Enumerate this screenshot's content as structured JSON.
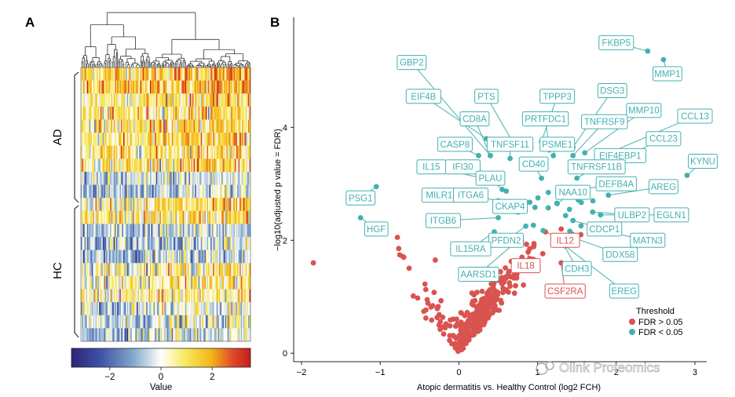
{
  "panels": {
    "a_label": "A",
    "b_label": "B"
  },
  "chart_data": [
    {
      "type": "heatmap",
      "panel": "A",
      "row_groups": [
        "AD",
        "HC"
      ],
      "colorbar": {
        "title": "Value",
        "ticks": [
          -2,
          0,
          2
        ],
        "tick_labels": [
          "−2",
          "0",
          "2"
        ],
        "range": [
          -3.5,
          3.5
        ],
        "colors": [
          "#2b2676",
          "#3f50a8",
          "#7fa6c8",
          "#ffffff",
          "#f7e85a",
          "#f4b41a",
          "#e04a2a",
          "#c41c1c"
        ]
      }
    },
    {
      "type": "scatter",
      "panel": "B",
      "xlabel": "Atopic dermatitis vs. Healthy Control (log2 FCH)",
      "ylabel": "−log10(adjusted p value = FDR)",
      "xlim": [
        -2.1,
        3.15
      ],
      "ylim": [
        -0.15,
        5.95
      ],
      "xticks": [
        -2,
        -1,
        0,
        1,
        2,
        3
      ],
      "xtick_labels": [
        "−2",
        "−1",
        "0",
        "1",
        "2",
        "3"
      ],
      "yticks": [
        0,
        2,
        4
      ],
      "ytick_labels": [
        "0",
        "2",
        "4"
      ],
      "legend": {
        "title": "Threshold",
        "position": "bottom-right",
        "entries": [
          {
            "label": "FDR > 0.05",
            "color": "#d9534f"
          },
          {
            "label": "FDR < 0.05",
            "color": "#45b0b0"
          }
        ]
      },
      "significant": [
        {
          "name": "FKBP5",
          "x": 2.4,
          "y": 5.35,
          "lx": 2.0,
          "ly": 5.5
        },
        {
          "name": "MMP1",
          "x": 2.6,
          "y": 5.2,
          "lx": 2.65,
          "ly": 4.95
        },
        {
          "name": "GBP2",
          "x": 0.4,
          "y": 3.5,
          "lx": -0.6,
          "ly": 5.15
        },
        {
          "name": "EIF4B",
          "x": 0.35,
          "y": 3.8,
          "lx": -0.45,
          "ly": 4.55
        },
        {
          "name": "PTS",
          "x": 0.7,
          "y": 3.7,
          "lx": 0.35,
          "ly": 4.55
        },
        {
          "name": "TPPP3",
          "x": 1.05,
          "y": 3.75,
          "lx": 1.25,
          "ly": 4.55
        },
        {
          "name": "DSG3",
          "x": 1.45,
          "y": 3.65,
          "lx": 1.95,
          "ly": 4.65
        },
        {
          "name": "MMP10",
          "x": 1.6,
          "y": 3.55,
          "lx": 2.35,
          "ly": 4.3
        },
        {
          "name": "CCL13",
          "x": 1.75,
          "y": 3.45,
          "lx": 3.0,
          "ly": 4.2
        },
        {
          "name": "CD8A",
          "x": 0.4,
          "y": 3.5,
          "lx": 0.2,
          "ly": 4.15
        },
        {
          "name": "PRTFDC1",
          "x": 1.15,
          "y": 3.6,
          "lx": 1.1,
          "ly": 4.15
        },
        {
          "name": "TNFRSF9",
          "x": 1.45,
          "y": 3.5,
          "lx": 1.85,
          "ly": 4.1
        },
        {
          "name": "CCL23",
          "x": 1.85,
          "y": 3.3,
          "lx": 2.6,
          "ly": 3.8
        },
        {
          "name": "CASP8",
          "x": 0.25,
          "y": 3.5,
          "lx": -0.05,
          "ly": 3.7
        },
        {
          "name": "TNFSF11",
          "x": 0.65,
          "y": 3.45,
          "lx": 0.65,
          "ly": 3.7
        },
        {
          "name": "PSME1",
          "x": 1.2,
          "y": 3.5,
          "lx": 1.25,
          "ly": 3.7
        },
        {
          "name": "EIF4EBP1",
          "x": 1.65,
          "y": 3.35,
          "lx": 2.05,
          "ly": 3.5
        },
        {
          "name": "IL15",
          "x": 0.3,
          "y": 3.1,
          "lx": -0.35,
          "ly": 3.3
        },
        {
          "name": "IFI30",
          "x": 0.55,
          "y": 3.05,
          "lx": 0.05,
          "ly": 3.3
        },
        {
          "name": "CD40",
          "x": 1.05,
          "y": 3.1,
          "lx": 0.95,
          "ly": 3.35
        },
        {
          "name": "TNFRSF11B",
          "x": 1.5,
          "y": 3.1,
          "lx": 1.75,
          "ly": 3.3
        },
        {
          "name": "KYNU",
          "x": 2.9,
          "y": 3.15,
          "lx": 3.1,
          "ly": 3.4
        },
        {
          "name": "PLAU",
          "x": 0.55,
          "y": 2.9,
          "lx": 0.4,
          "ly": 3.1
        },
        {
          "name": "DEFB4A",
          "x": 1.55,
          "y": 2.9,
          "lx": 2.0,
          "ly": 3.0
        },
        {
          "name": "AREG",
          "x": 1.9,
          "y": 2.8,
          "lx": 2.6,
          "ly": 2.95
        },
        {
          "name": "PSG1",
          "x": -1.05,
          "y": 2.95,
          "lx": -1.25,
          "ly": 2.75
        },
        {
          "name": "MILR1",
          "x": 0.2,
          "y": 2.75,
          "lx": -0.25,
          "ly": 2.8
        },
        {
          "name": "ITGA6",
          "x": 0.5,
          "y": 2.7,
          "lx": 0.15,
          "ly": 2.8
        },
        {
          "name": "NAA10",
          "x": 1.25,
          "y": 2.65,
          "lx": 1.45,
          "ly": 2.85
        },
        {
          "name": "CKAP4",
          "x": 0.75,
          "y": 2.5,
          "lx": 0.65,
          "ly": 2.6
        },
        {
          "name": "ULBP2",
          "x": 1.7,
          "y": 2.5,
          "lx": 2.2,
          "ly": 2.45
        },
        {
          "name": "EGLN1",
          "x": 1.8,
          "y": 2.45,
          "lx": 2.7,
          "ly": 2.45
        },
        {
          "name": "HGF",
          "x": -1.25,
          "y": 2.4,
          "lx": -1.05,
          "ly": 2.2
        },
        {
          "name": "ITGB6",
          "x": 0.5,
          "y": 2.4,
          "lx": -0.2,
          "ly": 2.35
        },
        {
          "name": "CDCP1",
          "x": 1.45,
          "y": 2.35,
          "lx": 1.85,
          "ly": 2.2
        },
        {
          "name": "PFDN2",
          "x": 0.85,
          "y": 2.25,
          "lx": 0.6,
          "ly": 2.0
        },
        {
          "name": "MATN3",
          "x": 1.7,
          "y": 2.2,
          "lx": 2.4,
          "ly": 2.0
        },
        {
          "name": "IL15RA",
          "x": 0.45,
          "y": 2.15,
          "lx": 0.15,
          "ly": 1.85
        },
        {
          "name": "DDX58",
          "x": 1.45,
          "y": 2.05,
          "lx": 2.05,
          "ly": 1.75
        },
        {
          "name": "CDH3",
          "x": 1.3,
          "y": 2.0,
          "lx": 1.5,
          "ly": 1.5
        },
        {
          "name": "AARSD1",
          "x": 0.75,
          "y": 2.0,
          "lx": 0.25,
          "ly": 1.4
        },
        {
          "name": "EREG",
          "x": 1.35,
          "y": 1.9,
          "lx": 2.1,
          "ly": 1.1
        }
      ],
      "highlighted_ns": [
        {
          "name": "IL12",
          "x": 1.1,
          "y": 2.15,
          "lx": 1.35,
          "ly": 2.0
        },
        {
          "name": "IL18",
          "x": 0.9,
          "y": 1.85,
          "lx": 0.85,
          "ly": 1.55
        },
        {
          "name": "CSF2RA",
          "x": 1.3,
          "y": 1.6,
          "lx": 1.35,
          "ly": 1.1
        }
      ]
    }
  ],
  "watermark": "Olink Proteomics"
}
